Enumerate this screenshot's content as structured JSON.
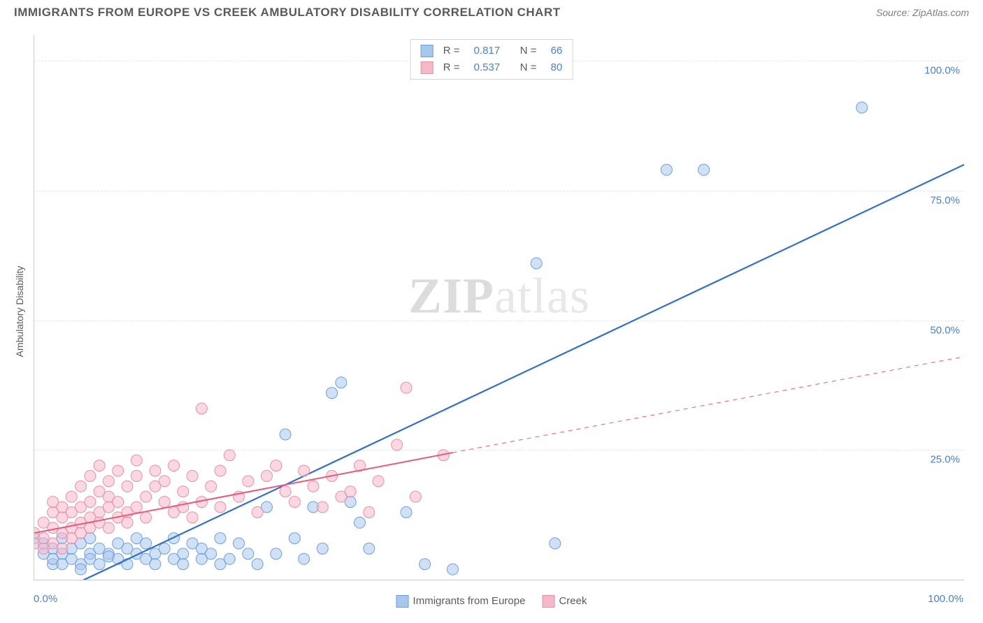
{
  "title": "IMMIGRANTS FROM EUROPE VS CREEK AMBULATORY DISABILITY CORRELATION CHART",
  "source": "Source: ZipAtlas.com",
  "watermark_zip": "ZIP",
  "watermark_atlas": "atlas",
  "y_axis_label": "Ambulatory Disability",
  "chart": {
    "type": "scatter",
    "xlim": [
      0,
      100
    ],
    "ylim": [
      0,
      105
    ],
    "x_ticks": [
      "0.0%",
      "100.0%"
    ],
    "y_ticks": [
      {
        "value": 25,
        "label": "25.0%"
      },
      {
        "value": 50,
        "label": "50.0%"
      },
      {
        "value": 75,
        "label": "75.0%"
      },
      {
        "value": 100,
        "label": "100.0%"
      }
    ],
    "grid_color": "#e6e6e6",
    "background_color": "#ffffff",
    "series": [
      {
        "name": "Immigrants from Europe",
        "color_fill": "#a9c6ec",
        "color_stroke": "#6da0e0",
        "marker_radius": 8,
        "marker_opacity": 0.55,
        "R": "0.817",
        "N": "66",
        "trend": {
          "x1": 3,
          "y1": -2,
          "x2": 100,
          "y2": 80,
          "stroke": "#2f6fd0",
          "width": 2.2,
          "dash_from_x": null
        },
        "points": [
          [
            0,
            8
          ],
          [
            1,
            5
          ],
          [
            1,
            7
          ],
          [
            2,
            3
          ],
          [
            2,
            6
          ],
          [
            2,
            4
          ],
          [
            3,
            5
          ],
          [
            3,
            8
          ],
          [
            3,
            3
          ],
          [
            4,
            4
          ],
          [
            4,
            6
          ],
          [
            5,
            3
          ],
          [
            5,
            7
          ],
          [
            5,
            2
          ],
          [
            6,
            5
          ],
          [
            6,
            4
          ],
          [
            6,
            8
          ],
          [
            7,
            6
          ],
          [
            7,
            3
          ],
          [
            8,
            5
          ],
          [
            8,
            4.5
          ],
          [
            9,
            7
          ],
          [
            9,
            4
          ],
          [
            10,
            3
          ],
          [
            10,
            6
          ],
          [
            11,
            5
          ],
          [
            11,
            8
          ],
          [
            12,
            4
          ],
          [
            12,
            7
          ],
          [
            13,
            5
          ],
          [
            13,
            3
          ],
          [
            14,
            6
          ],
          [
            15,
            4
          ],
          [
            15,
            8
          ],
          [
            16,
            5
          ],
          [
            16,
            3
          ],
          [
            17,
            7
          ],
          [
            18,
            4
          ],
          [
            18,
            6
          ],
          [
            19,
            5
          ],
          [
            20,
            3
          ],
          [
            20,
            8
          ],
          [
            21,
            4
          ],
          [
            22,
            7
          ],
          [
            23,
            5
          ],
          [
            24,
            3
          ],
          [
            25,
            14
          ],
          [
            26,
            5
          ],
          [
            27,
            28
          ],
          [
            28,
            8
          ],
          [
            29,
            4
          ],
          [
            30,
            14
          ],
          [
            31,
            6
          ],
          [
            32,
            36
          ],
          [
            33,
            38
          ],
          [
            34,
            15
          ],
          [
            35,
            11
          ],
          [
            36,
            6
          ],
          [
            40,
            13
          ],
          [
            42,
            3
          ],
          [
            45,
            2
          ],
          [
            54,
            61
          ],
          [
            56,
            7
          ],
          [
            68,
            79
          ],
          [
            72,
            79
          ],
          [
            89,
            91
          ]
        ]
      },
      {
        "name": "Creek",
        "color_fill": "#f5b8c8",
        "color_stroke": "#ea8fa8",
        "marker_radius": 8,
        "marker_opacity": 0.55,
        "R": "0.537",
        "N": "80",
        "trend": {
          "x1": 0,
          "y1": 9,
          "x2": 45,
          "y2": 24.5,
          "stroke": "#e65a7f",
          "width": 2.0,
          "dash_from_x": 45,
          "x2_dash": 100,
          "y2_dash": 43
        },
        "points": [
          [
            0,
            7
          ],
          [
            0,
            9
          ],
          [
            1,
            8
          ],
          [
            1,
            11
          ],
          [
            1,
            6
          ],
          [
            2,
            10
          ],
          [
            2,
            13
          ],
          [
            2,
            7
          ],
          [
            2,
            15
          ],
          [
            3,
            9
          ],
          [
            3,
            12
          ],
          [
            3,
            6
          ],
          [
            3,
            14
          ],
          [
            4,
            10
          ],
          [
            4,
            8
          ],
          [
            4,
            16
          ],
          [
            4,
            13
          ],
          [
            5,
            11
          ],
          [
            5,
            9
          ],
          [
            5,
            18
          ],
          [
            5,
            14
          ],
          [
            6,
            10
          ],
          [
            6,
            12
          ],
          [
            6,
            20
          ],
          [
            6,
            15
          ],
          [
            7,
            13
          ],
          [
            7,
            11
          ],
          [
            7,
            17
          ],
          [
            7,
            22
          ],
          [
            8,
            14
          ],
          [
            8,
            10
          ],
          [
            8,
            19
          ],
          [
            8,
            16
          ],
          [
            9,
            12
          ],
          [
            9,
            21
          ],
          [
            9,
            15
          ],
          [
            10,
            13
          ],
          [
            10,
            18
          ],
          [
            10,
            11
          ],
          [
            11,
            14
          ],
          [
            11,
            20
          ],
          [
            11,
            23
          ],
          [
            12,
            16
          ],
          [
            12,
            12
          ],
          [
            13,
            18
          ],
          [
            13,
            21
          ],
          [
            14,
            15
          ],
          [
            14,
            19
          ],
          [
            15,
            13
          ],
          [
            15,
            22
          ],
          [
            16,
            17
          ],
          [
            16,
            14
          ],
          [
            17,
            20
          ],
          [
            17,
            12
          ],
          [
            18,
            15
          ],
          [
            18,
            33
          ],
          [
            19,
            18
          ],
          [
            20,
            21
          ],
          [
            20,
            14
          ],
          [
            21,
            24
          ],
          [
            22,
            16
          ],
          [
            23,
            19
          ],
          [
            24,
            13
          ],
          [
            25,
            20
          ],
          [
            26,
            22
          ],
          [
            27,
            17
          ],
          [
            28,
            15
          ],
          [
            29,
            21
          ],
          [
            30,
            18
          ],
          [
            31,
            14
          ],
          [
            32,
            20
          ],
          [
            33,
            16
          ],
          [
            34,
            17
          ],
          [
            35,
            22
          ],
          [
            36,
            13
          ],
          [
            37,
            19
          ],
          [
            39,
            26
          ],
          [
            40,
            37
          ],
          [
            41,
            16
          ],
          [
            44,
            24
          ]
        ]
      }
    ]
  },
  "top_legend": {
    "r_label": "R  =",
    "n_label": "N  ="
  },
  "bottom_legend": {
    "items": [
      "Immigrants from Europe",
      "Creek"
    ]
  }
}
